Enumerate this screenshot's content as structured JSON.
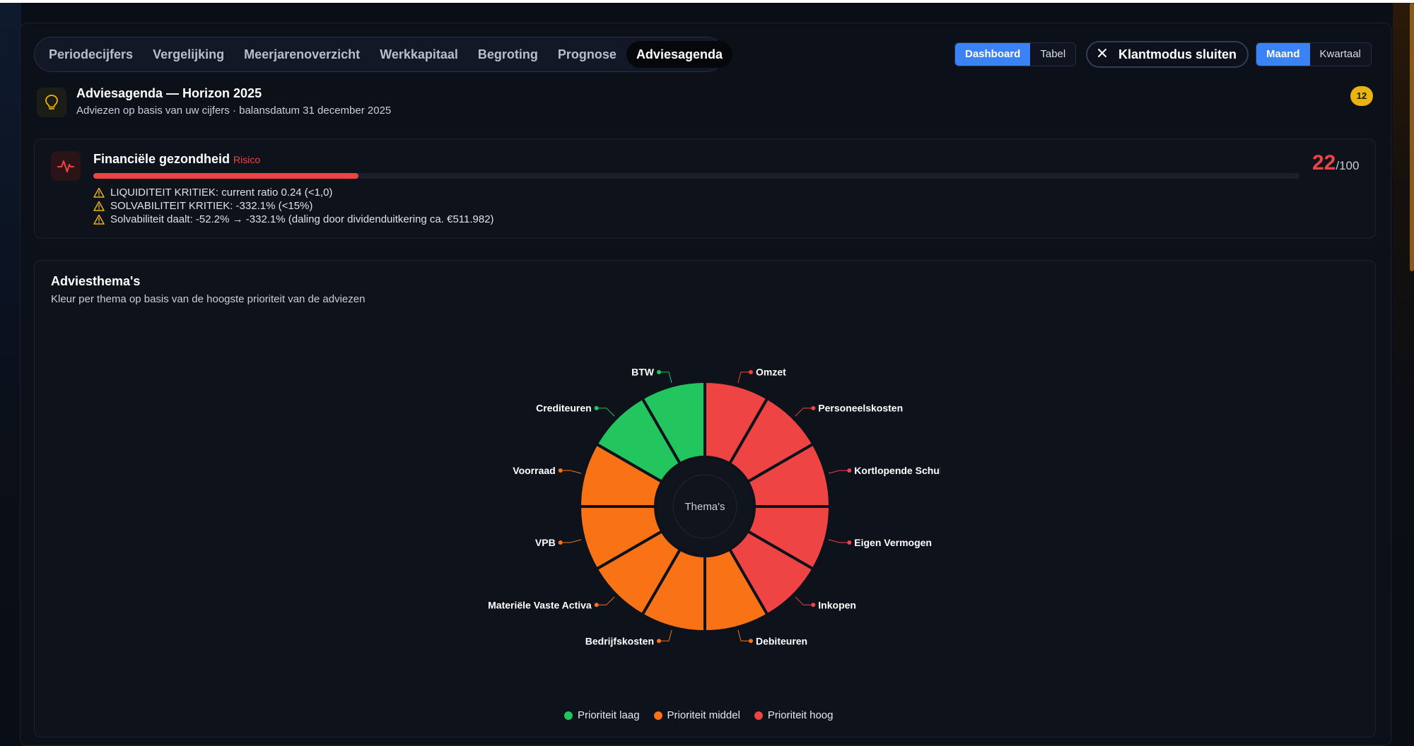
{
  "tabs": [
    {
      "label": "Periodecijfers",
      "active": false
    },
    {
      "label": "Vergelijking",
      "active": false
    },
    {
      "label": "Meerjarenoverzicht",
      "active": false
    },
    {
      "label": "Werkkapitaal",
      "active": false
    },
    {
      "label": "Begroting",
      "active": false
    },
    {
      "label": "Prognose",
      "active": false
    },
    {
      "label": "Adviesagenda",
      "active": true
    }
  ],
  "view_toggle": {
    "dashboard": "Dashboard",
    "table": "Tabel",
    "selected": "Dashboard"
  },
  "client_mode": {
    "label": "Klantmodus sluiten",
    "icon": "close-icon"
  },
  "period_toggle": {
    "month": "Maand",
    "quarter": "Kwartaal",
    "selected": "Maand"
  },
  "header": {
    "title": "Adviesagenda — Horizon 2025",
    "subtitle": "Adviezen op basis van uw cijfers · balansdatum 31 december 2025",
    "count": "12",
    "icon": "lightbulb-icon"
  },
  "health": {
    "title": "Financiële gezondheid",
    "status": "Risico",
    "score": "22",
    "score_max": "/100",
    "score_fraction": 0.22,
    "icon": "pulse-icon",
    "warnings": [
      "LIQUIDITEIT KRITIEK: current ratio 0.24 (<1,0)",
      "SOLVABILITEIT KRITIEK: -332.1% (<15%)",
      "Solvabiliteit daalt: -52.2% → -332.1% (daling door dividenduitkering ca. €511.982)"
    ]
  },
  "themes": {
    "title": "Adviesthema's",
    "subtitle": "Kleur per thema op basis van de hoogste prioriteit van de adviezen",
    "center_label": "Thema's"
  },
  "colors": {
    "laag": "#22c55e",
    "middel": "#f97316",
    "hoog": "#ef4444",
    "accent": "#3b82f6"
  },
  "chart_data": {
    "type": "pie",
    "title": "",
    "center_label": "Thema's",
    "slices": [
      {
        "label": "Omzet",
        "value": 1,
        "priority": "hoog"
      },
      {
        "label": "Personeelskosten",
        "value": 1,
        "priority": "hoog"
      },
      {
        "label": "Kortlopende Schulden",
        "display_label": "Kortlopende Schul",
        "value": 1,
        "priority": "hoog"
      },
      {
        "label": "Eigen Vermogen",
        "value": 1,
        "priority": "hoog"
      },
      {
        "label": "Inkopen",
        "value": 1,
        "priority": "hoog"
      },
      {
        "label": "Debiteuren",
        "value": 1,
        "priority": "middel"
      },
      {
        "label": "Bedrijfskosten",
        "value": 1,
        "priority": "middel"
      },
      {
        "label": "Materiële Vaste Activa",
        "value": 1,
        "priority": "middel"
      },
      {
        "label": "VPB",
        "value": 1,
        "priority": "middel"
      },
      {
        "label": "Voorraad",
        "value": 1,
        "priority": "middel"
      },
      {
        "label": "Crediteuren",
        "value": 1,
        "priority": "laag"
      },
      {
        "label": "BTW",
        "value": 1,
        "priority": "laag"
      }
    ],
    "legend": [
      {
        "label": "Prioriteit laag",
        "priority": "laag"
      },
      {
        "label": "Prioriteit middel",
        "priority": "middel"
      },
      {
        "label": "Prioriteit hoog",
        "priority": "hoog"
      }
    ],
    "legend_position": "bottom"
  }
}
